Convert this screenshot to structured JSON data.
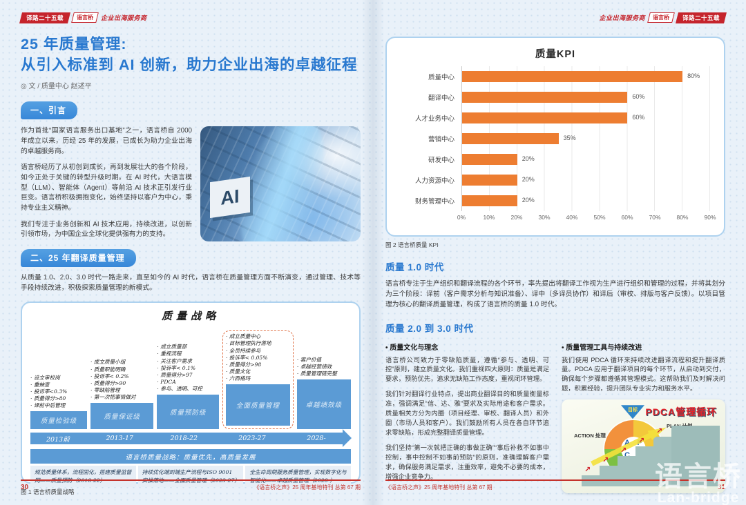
{
  "colors": {
    "accent_red": "#c5242c",
    "accent_blue": "#2878cf",
    "diagram_blue": "#5b9bd5",
    "bar_orange": "#ed7d31"
  },
  "header_left": {
    "badge": "译路二十五载",
    "logo": "语言桥",
    "tagline": "企业出海服务商"
  },
  "header_right": {
    "tagline": "企业出海服务商",
    "logo": "语言桥",
    "badge": "译路二十五载"
  },
  "left_page": {
    "title_line1": "25 年质量管理:",
    "title_line2": "从引入标准到 AI 创新，助力企业出海的卓越征程",
    "byline": "◎ 文 / 质量中心 赵述平",
    "section1": {
      "heading": "一、引言",
      "paragraphs": [
        "作为首批“国家语言服务出口基地”之一，语言桥自 2000 年成立以来，历经 25 年的发展，已成长为助力企业出海的卓越服务商。",
        "语言桥经历了从初创到成长，再到发展壮大的各个阶段，如今正处于关键的转型升级时期。在 AI 时代，大语言模型（LLM）、智能体（Agent）等前沿 AI 技术正引发行业巨变。语言桥积极拥抱变化，始终坚持以客户为中心，秉持专业主义精神。",
        "我们专注于业务创新和 AI 技术应用，持续改进，以创新引领市场，为中国企业全球化提供强有力的支持。"
      ]
    },
    "ai_image_label": "AI",
    "section2": {
      "heading": "二、25 年翻译质量管理",
      "intro": "从质量 1.0、2.0、3.0 时代一路走来，直至如今的 AI 时代，语言桥在质量管理方面不断演变，通过管理、技术等手段持续改进，积极探索质量管理的新模式。"
    },
    "figure1": {
      "title": "质量战略",
      "stages": [
        {
          "items": [
            "设立审校岗",
            "重抽查",
            "投诉率<0.3%",
            "质量得分>80",
            "译前中后管理"
          ],
          "level": "质量检验级",
          "period": "2013前"
        },
        {
          "items": [
            "成立质量小组",
            "质量职能明确",
            "投诉率< 0.2%",
            "质量得分>90",
            "零缺陷管理",
            "第一次把事情做对"
          ],
          "level": "质量保证级",
          "period": "2013-17"
        },
        {
          "items": [
            "成立质量部",
            "重视流程",
            "关注客户需求",
            "投诉率< 0.1%",
            "质量得分>97",
            "PDCA",
            "参与、透明、可控"
          ],
          "level": "质量预防级",
          "period": "2018-22"
        },
        {
          "items": [
            "成立质量中心",
            "目标管理执行落地",
            "全员持续参与",
            "投诉率< 0.05%",
            "质量得分>98",
            "质量文化",
            "六西格玛"
          ],
          "level": "全面质量管理",
          "period": "2023-27"
        },
        {
          "items": [
            "客户价值",
            "卓越经营绩效",
            "质量管理链完整"
          ],
          "level": "卓越绩效级",
          "period": "2028-"
        }
      ],
      "banner": "语言桥质量战略：质量优先，高质量发展",
      "strategy_rows": [
        "规范质量体系，流程固化，搭建质量监督网——质量预防（2018-22）",
        "持续优化端到端生产流程与ISO 9001 实操落地——全面质量管理（2023-27）",
        "全生命周期服务质量管理，实现数字化与智能化——卓越质量管理（2028-）"
      ],
      "caption": "图 1 语言桥质量战略"
    },
    "footer": {
      "page_no": "30",
      "journal": "《语言桥之声》25 周年基地特刊 总第 67 期"
    }
  },
  "right_page": {
    "figure2_caption": "图 2 语言桥质量 KPI",
    "era1_heading": "质量 1.0 时代",
    "era1_para": "语言桥专注于生产组织和翻译流程的各个环节，率先提出将翻译工作视为生产进行组织和管理的过程，并将其划分为三个阶段：译前（客户需求分析与知识准备）、译中（多译员协作）和译后（审校、排版与客户反馈）。以项目管理为核心的翻译质量管理，构成了语言桥的质量 1.0 时代。",
    "era23_heading": "质量 2.0 到 3.0 时代",
    "col_left_heading": "• 质量文化与理念",
    "col_left_paras": [
      "语言桥公司致力于零缺陷质量，遵循“参与、透明、可控”原则，建立质量文化。我们重视四大原则：质量是满足要求，预防优先，追求无缺陷工作态度，重视闭环管理。",
      "我们针对翻译行业特点，提出商业翻译目的和质量衡量标准，强调满足“信、达、雅”要求及实际用途和客户需求。质量相关方分为内圈（项目经理、审校、翻译人员）和外圈（市场人员和客户）。我们鼓励所有人员在各自环节追求零缺陷，形成完整翻译质量管理。",
      "我们坚持“第一次就把正确的事做正确”“事后补救不如事中控制，事中控制不如事前预防”的原则，准确理解客户需求，确保服务满足需求，注重效率，避免不必要的成本，增强企业竞争力。"
    ],
    "col_right_heading": "• 质量管理工具与持续改进",
    "col_right_para": "我们使用 PDCA 循环来持续改进翻译流程和提升翻译质量。PDCA 应用于翻译项目的每个环节，从启动到交付，确保每个步骤都遵循其管理模式。这帮助我们及时解决问题，积累经验，提升团队专业实力和服务水平。",
    "pdca": {
      "title": "PDCA管理循环",
      "goal": "目标",
      "action_label": "ACTION 处理",
      "plan_label": "PLAN 计划",
      "do_label": "DO 实施",
      "check_label": "CHECK 检查",
      "letters": [
        "A",
        "P",
        "C",
        "D"
      ]
    },
    "footer": {
      "journal": "《语言桥之声》25 周年基地特刊 总第 67 期",
      "page_no": "31"
    },
    "watermark": {
      "zh": "语言桥",
      "en": "Lan-bridge"
    }
  },
  "chart_data": {
    "type": "bar",
    "orientation": "horizontal",
    "title": "质量KPI",
    "categories": [
      "质量中心",
      "翻译中心",
      "人才业务中心",
      "营销中心",
      "研发中心",
      "人力资源中心",
      "财务管理中心"
    ],
    "values": [
      80,
      60,
      60,
      35,
      20,
      20,
      20
    ],
    "value_suffix": "%",
    "x_ticks": [
      "0%",
      "10%",
      "20%",
      "30%",
      "40%",
      "50%",
      "60%",
      "70%",
      "80%",
      "90%"
    ],
    "xlim": [
      0,
      90
    ],
    "bar_color": "#ed7d31",
    "grid": "vertical-light",
    "legend": false
  }
}
